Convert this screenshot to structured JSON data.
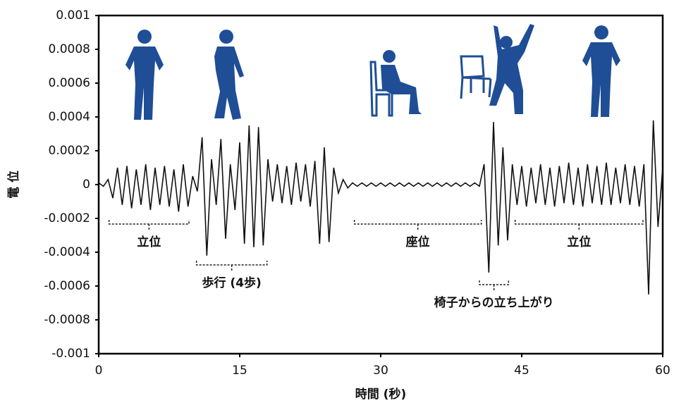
{
  "chart_data": {
    "type": "line",
    "x_label": "時間 (秒)",
    "y_label": "電 位",
    "color": "#111111",
    "xlim": [
      0,
      60
    ],
    "xticks": [
      0,
      15,
      30,
      45,
      60
    ],
    "ylim": [
      -0.001,
      0.001
    ],
    "yticks": [
      0.001,
      0.0008,
      0.0006,
      0.0004,
      0.0002,
      0,
      -0.0002,
      -0.0004,
      -0.0006,
      -0.0008,
      -0.001
    ],
    "x": [
      0,
      0.5,
      1,
      1.5,
      2,
      2.5,
      3,
      3.5,
      4,
      4.5,
      5,
      5.5,
      6,
      6.5,
      7,
      7.5,
      8,
      8.5,
      9,
      9.5,
      10,
      10.5,
      11,
      11.5,
      12,
      12.5,
      13,
      13.5,
      14,
      14.5,
      15,
      15.5,
      16,
      16.5,
      17,
      17.5,
      18,
      18.5,
      19,
      19.5,
      20,
      20.5,
      21,
      21.5,
      22,
      22.5,
      23,
      23.5,
      24,
      24.5,
      25,
      25.5,
      26,
      26.5,
      27,
      27.5,
      28,
      28.5,
      29,
      29.5,
      30,
      30.5,
      31,
      31.5,
      32,
      32.5,
      33,
      33.5,
      34,
      34.5,
      35,
      35.5,
      36,
      36.5,
      37,
      37.5,
      38,
      38.5,
      39,
      39.5,
      40,
      40.5,
      41,
      41.5,
      42,
      42.5,
      43,
      43.5,
      44,
      44.5,
      45,
      45.5,
      46,
      46.5,
      47,
      47.5,
      48,
      48.5,
      49,
      49.5,
      50,
      50.5,
      51,
      51.5,
      52,
      52.5,
      53,
      53.5,
      54,
      54.5,
      55,
      55.5,
      56,
      56.5,
      57,
      57.5,
      58,
      58.5,
      59,
      59.5,
      60
    ],
    "values": [
      1e-05,
      -1e-05,
      3e-05,
      -8e-05,
      0.0001,
      -0.00012,
      0.00011,
      -0.00014,
      9e-05,
      -0.00012,
      0.00012,
      -0.00015,
      0.0001,
      -0.00012,
      0.00011,
      -0.00013,
      9e-05,
      -0.00016,
      0.00012,
      -0.00013,
      5e-05,
      -4e-05,
      0.00028,
      -0.00042,
      0.00015,
      -0.00012,
      0.00027,
      -0.00032,
      0.00012,
      -0.00015,
      0.00025,
      -0.00035,
      0.00035,
      -0.00037,
      0.00034,
      -0.00036,
      0.00015,
      -0.0001,
      0.00012,
      -0.00011,
      0.00011,
      -0.00012,
      0.00013,
      -0.0001,
      0.00012,
      -0.00013,
      0.00014,
      -0.00035,
      0.00022,
      -0.00034,
      0.0001,
      -5e-05,
      3e-05,
      -2e-05,
      1e-05,
      -1e-05,
      1e-05,
      -1e-05,
      1e-05,
      -1e-05,
      1e-05,
      -1e-05,
      1e-05,
      -1e-05,
      1e-05,
      -1e-05,
      1e-05,
      -1e-05,
      1e-05,
      -1e-05,
      1e-05,
      -1e-05,
      1e-05,
      -1e-05,
      1e-05,
      -1e-05,
      1e-05,
      -1e-05,
      1e-05,
      -1e-05,
      1e-05,
      -1e-05,
      0.00012,
      -0.00052,
      0.00037,
      -0.00036,
      0.00022,
      -0.00033,
      0.00012,
      -0.00012,
      0.00011,
      -0.00013,
      0.0001,
      -0.00011,
      0.00012,
      -0.00012,
      0.0001,
      -0.00013,
      0.00011,
      -0.00011,
      0.00013,
      -0.00012,
      0.0001,
      -0.00013,
      0.00012,
      -0.00011,
      0.00011,
      -0.00012,
      0.00013,
      -0.00012,
      0.0001,
      -0.00011,
      0.00012,
      -0.00012,
      0.00011,
      -0.00013,
      0.00012,
      -0.00065,
      0.00038,
      -0.00025,
      0.0001
    ],
    "annotations": [
      {
        "text": "立位",
        "x": [
          1.1,
          9.6
        ]
      },
      {
        "text": "歩行 (4歩)",
        "x": [
          10.4,
          17.9
        ]
      },
      {
        "text": "座位",
        "x": [
          27.2,
          40.7
        ]
      },
      {
        "text": "椅子からの立ち上がり",
        "x": [
          40.5,
          43.6
        ]
      },
      {
        "text": "立位",
        "x": [
          44.3,
          57.9
        ]
      }
    ]
  }
}
